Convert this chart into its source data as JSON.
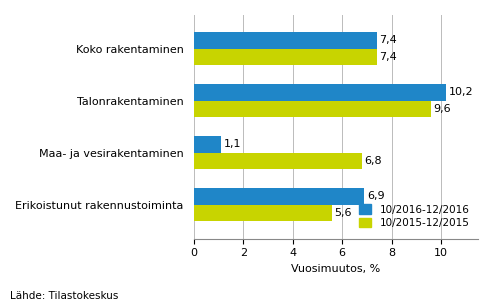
{
  "categories": [
    "Erikoistunut rakennustoiminta",
    "Maa- ja vesirakentaminen",
    "Talonrakentaminen",
    "Koko rakentaminen"
  ],
  "series": [
    {
      "label": "10/2016-12/2016",
      "color": "#1F86C8",
      "values": [
        6.9,
        1.1,
        10.2,
        7.4
      ]
    },
    {
      "label": "10/2015-12/2015",
      "color": "#C8D400",
      "values": [
        5.6,
        6.8,
        9.6,
        7.4
      ]
    }
  ],
  "xlabel": "Vuosimuutos, %",
  "xlim": [
    0,
    11.5
  ],
  "xticks": [
    0,
    2,
    4,
    6,
    8,
    10
  ],
  "bar_height": 0.32,
  "source": "Lähde: Tilastokeskus",
  "background_color": "#ffffff",
  "grid_color": "#bbbbbb",
  "label_fontsize": 8,
  "tick_fontsize": 8,
  "value_fontsize": 8
}
